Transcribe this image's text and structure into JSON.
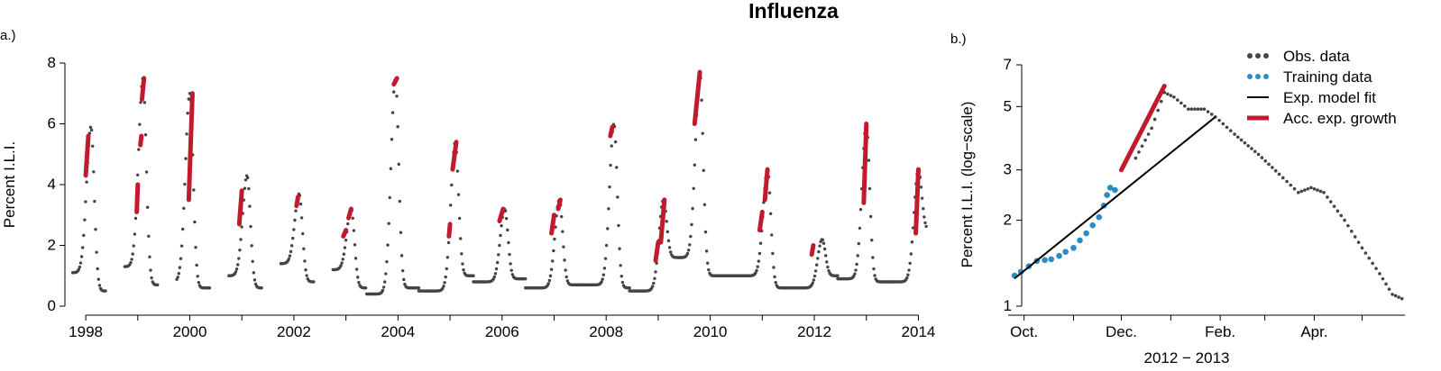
{
  "title": "Influenza",
  "colors": {
    "observed": "#444444",
    "training": "#2b8cc4",
    "fit": "#000000",
    "acc_growth": "#c01a2c"
  },
  "chart_data": [
    {
      "panel_label": "a.)",
      "type": "scatter",
      "xlabel": "",
      "ylabel": "Percent I.L.I.",
      "xlim": [
        1997.6,
        2014.2
      ],
      "ylim": [
        0,
        8
      ],
      "xticks": [
        1998,
        2000,
        2002,
        2004,
        2006,
        2008,
        2010,
        2012,
        2014
      ],
      "xtick_labels": [
        "1998",
        "2000",
        "2002",
        "2004",
        "2006",
        "2008",
        "2010",
        "2012",
        "2014"
      ],
      "yticks": [
        0,
        2,
        4,
        6,
        8
      ],
      "ytick_labels": [
        "0",
        "2",
        "4",
        "6",
        "8"
      ],
      "grid": false,
      "seasons": [
        {
          "start": 1997.75,
          "end": 1998.38,
          "peak_x": 1998.1,
          "peak": 5.9,
          "base_start": 1.1,
          "base_end": 0.5
        },
        {
          "start": 1998.75,
          "end": 1999.38,
          "peak_x": 1999.1,
          "peak": 7.5,
          "base_start": 1.3,
          "base_end": 0.7
        },
        {
          "start": 1999.75,
          "end": 2000.38,
          "peak_x": 2000.0,
          "peak": 7.0,
          "base_start": 0.8,
          "base_end": 0.6
        },
        {
          "start": 2000.75,
          "end": 2001.38,
          "peak_x": 2001.1,
          "peak": 4.3,
          "base_start": 1.0,
          "base_end": 0.6
        },
        {
          "start": 2001.75,
          "end": 2002.38,
          "peak_x": 2002.1,
          "peak": 3.7,
          "base_start": 1.4,
          "base_end": 0.8
        },
        {
          "start": 2002.75,
          "end": 2003.38,
          "peak_x": 2003.1,
          "peak": 3.2,
          "base_start": 1.2,
          "base_end": 0.6
        },
        {
          "start": 2003.4,
          "end": 2004.4,
          "peak_x": 2003.95,
          "peak": 7.5,
          "base_start": 0.4,
          "base_end": 0.6
        },
        {
          "start": 2004.4,
          "end": 2005.45,
          "peak_x": 2005.1,
          "peak": 5.4,
          "base_start": 0.5,
          "base_end": 1.0
        },
        {
          "start": 2005.45,
          "end": 2006.45,
          "peak_x": 2006.05,
          "peak": 3.2,
          "base_start": 0.8,
          "base_end": 0.9
        },
        {
          "start": 2006.45,
          "end": 2007.45,
          "peak_x": 2007.1,
          "peak": 3.5,
          "base_start": 0.6,
          "base_end": 0.7
        },
        {
          "start": 2007.45,
          "end": 2008.45,
          "peak_x": 2008.15,
          "peak": 6.0,
          "base_start": 0.7,
          "base_end": 0.6
        },
        {
          "start": 2008.45,
          "end": 2009.45,
          "peak_x": 2009.1,
          "peak": 3.5,
          "base_start": 0.5,
          "base_end": 1.6
        },
        {
          "start": 2009.45,
          "end": 2010.45,
          "peak_x": 2009.8,
          "peak": 7.7,
          "base_start": 1.6,
          "base_end": 1.0
        },
        {
          "start": 2010.45,
          "end": 2011.45,
          "peak_x": 2011.1,
          "peak": 4.5,
          "base_start": 1.0,
          "base_end": 0.6
        },
        {
          "start": 2011.45,
          "end": 2012.45,
          "peak_x": 2012.15,
          "peak": 2.2,
          "base_start": 0.6,
          "base_end": 1.0
        },
        {
          "start": 2012.45,
          "end": 2013.45,
          "peak_x": 2013.0,
          "peak": 6.0,
          "base_start": 0.9,
          "base_end": 0.8
        },
        {
          "start": 2013.45,
          "end": 2014.15,
          "peak_x": 2014.0,
          "peak": 4.5,
          "base_start": 0.8,
          "base_end": 2.5
        }
      ],
      "acc_growth_segments": [
        [
          1998.0,
          4.3,
          1998.05,
          5.6
        ],
        [
          1998.98,
          3.1,
          1999.0,
          4.0
        ],
        [
          1999.05,
          5.3,
          1999.07,
          5.6
        ],
        [
          1999.08,
          6.8,
          1999.12,
          7.5
        ],
        [
          1999.98,
          3.5,
          2000.05,
          7.0
        ],
        [
          2000.95,
          2.7,
          2001.0,
          3.8
        ],
        [
          2002.05,
          3.3,
          2002.08,
          3.6
        ],
        [
          2002.95,
          2.3,
          2003.0,
          2.5
        ],
        [
          2003.05,
          2.9,
          2003.1,
          3.2
        ],
        [
          2003.92,
          7.3,
          2003.98,
          7.5
        ],
        [
          2004.98,
          2.3,
          2005.0,
          2.7
        ],
        [
          2005.05,
          4.5,
          2005.12,
          5.4
        ],
        [
          2005.95,
          2.8,
          2006.02,
          3.2
        ],
        [
          2006.95,
          2.4,
          2007.0,
          3.0
        ],
        [
          2007.08,
          3.2,
          2007.12,
          3.5
        ],
        [
          2008.08,
          5.6,
          2008.12,
          5.9
        ],
        [
          2008.95,
          1.5,
          2009.0,
          2.1
        ],
        [
          2009.05,
          2.1,
          2009.12,
          3.5
        ],
        [
          2009.7,
          6.0,
          2009.8,
          7.7
        ],
        [
          2010.95,
          2.5,
          2011.0,
          3.1
        ],
        [
          2011.05,
          3.5,
          2011.1,
          4.5
        ],
        [
          2011.95,
          1.7,
          2011.98,
          2.0
        ],
        [
          2012.95,
          3.4,
          2013.0,
          6.0
        ],
        [
          2013.95,
          2.4,
          2014.0,
          4.5
        ]
      ]
    },
    {
      "panel_label": "b.)",
      "type": "scatter",
      "xlabel": "2012 − 2013",
      "ylabel": "Percent I.L.I. (log−scale)",
      "y_scale": "log",
      "xlim": [
        "2012-09-21",
        "2013-05-29"
      ],
      "ylim": [
        1,
        7
      ],
      "xticks": [
        "2012-10-01",
        "2012-12-01",
        "2013-02-01",
        "2013-04-01"
      ],
      "xtick_labels": [
        "Oct.",
        "Dec.",
        "Feb.",
        "Apr."
      ],
      "minor_xticks": [
        "2012-11-01",
        "2013-01-01",
        "2013-03-01",
        "2013-05-01"
      ],
      "yticks": [
        1,
        2,
        3,
        5,
        7
      ],
      "ytick_labels": [
        "1",
        "2",
        "3",
        "5",
        "7"
      ],
      "grid": false,
      "legend_position": "top-right",
      "legend": [
        "Obs. data",
        "Training data",
        "Exp. model fit",
        "Acc. exp. growth"
      ],
      "observed_curve": [
        [
          "2012-12-10",
          3.3
        ],
        [
          "2012-12-20",
          4.2
        ],
        [
          "2012-12-28",
          5.6
        ],
        [
          "2013-01-03",
          5.4
        ],
        [
          "2013-01-12",
          4.9
        ],
        [
          "2013-01-22",
          4.9
        ],
        [
          "2013-01-29",
          4.6
        ],
        [
          "2013-02-10",
          4.0
        ],
        [
          "2013-02-25",
          3.4
        ],
        [
          "2013-03-10",
          2.9
        ],
        [
          "2013-03-22",
          2.5
        ],
        [
          "2013-03-30",
          2.6
        ],
        [
          "2013-04-07",
          2.5
        ],
        [
          "2013-04-20",
          2.0
        ],
        [
          "2013-05-01",
          1.6
        ],
        [
          "2013-05-12",
          1.3
        ],
        [
          "2013-05-20",
          1.1
        ],
        [
          "2013-05-28",
          1.05
        ]
      ],
      "training_data": [
        [
          "2012-09-25",
          1.28
        ],
        [
          "2012-09-29",
          1.32
        ],
        [
          "2012-10-04",
          1.38
        ],
        [
          "2012-10-09",
          1.44
        ],
        [
          "2012-10-14",
          1.45
        ],
        [
          "2012-10-18",
          1.46
        ],
        [
          "2012-10-23",
          1.5
        ],
        [
          "2012-10-27",
          1.55
        ],
        [
          "2012-11-01",
          1.6
        ],
        [
          "2012-11-05",
          1.7
        ],
        [
          "2012-11-09",
          1.8
        ],
        [
          "2012-11-13",
          1.92
        ],
        [
          "2012-11-17",
          2.05
        ],
        [
          "2012-11-20",
          2.25
        ],
        [
          "2012-11-22",
          2.45
        ],
        [
          "2012-11-24",
          2.6
        ],
        [
          "2012-11-27",
          2.55
        ]
      ],
      "exp_model_fit": [
        [
          "2012-09-25",
          1.25
        ],
        [
          "2013-01-29",
          4.6
        ]
      ],
      "acc_growth": [
        [
          "2012-12-01",
          3.0
        ],
        [
          "2012-12-28",
          5.9
        ]
      ]
    }
  ]
}
